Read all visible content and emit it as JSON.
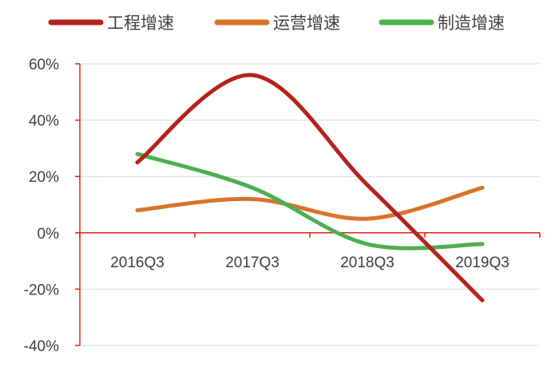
{
  "chart_data": {
    "type": "line",
    "categories": [
      "2016Q3",
      "2017Q3",
      "2018Q3",
      "2019Q3"
    ],
    "series": [
      {
        "name": "工程增速",
        "color": "#b5221c",
        "values": [
          25,
          56,
          17,
          -24
        ]
      },
      {
        "name": "运营增速",
        "color": "#d8732c",
        "values": [
          8,
          12,
          5,
          16
        ]
      },
      {
        "name": "制造增速",
        "color": "#4caf4f",
        "values": [
          28,
          16,
          -4,
          -4
        ]
      }
    ],
    "yticks": [
      "60%",
      "40%",
      "20%",
      "0%",
      "-20%",
      "-40%"
    ],
    "ylim": [
      -40,
      60
    ],
    "smooth": true,
    "grid": true,
    "grid_color": "#d9d9d9",
    "axis_color": "#e0201a",
    "legend_position": "top"
  }
}
